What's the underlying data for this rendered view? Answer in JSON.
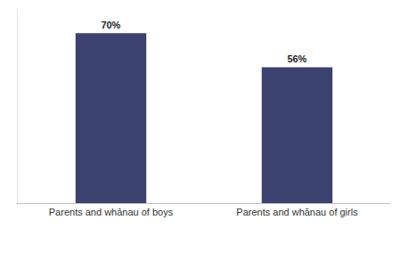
{
  "chart_data": {
    "type": "bar",
    "categories": [
      "Parents and whānau of boys",
      "Parents and whānau of girls"
    ],
    "values": [
      70,
      56
    ],
    "value_labels": [
      "70%",
      "56%"
    ],
    "color": "#3b4270",
    "ylim": [
      0,
      80
    ],
    "yticks": [],
    "grid": false,
    "data_labels": true,
    "tick_labels": "x"
  }
}
